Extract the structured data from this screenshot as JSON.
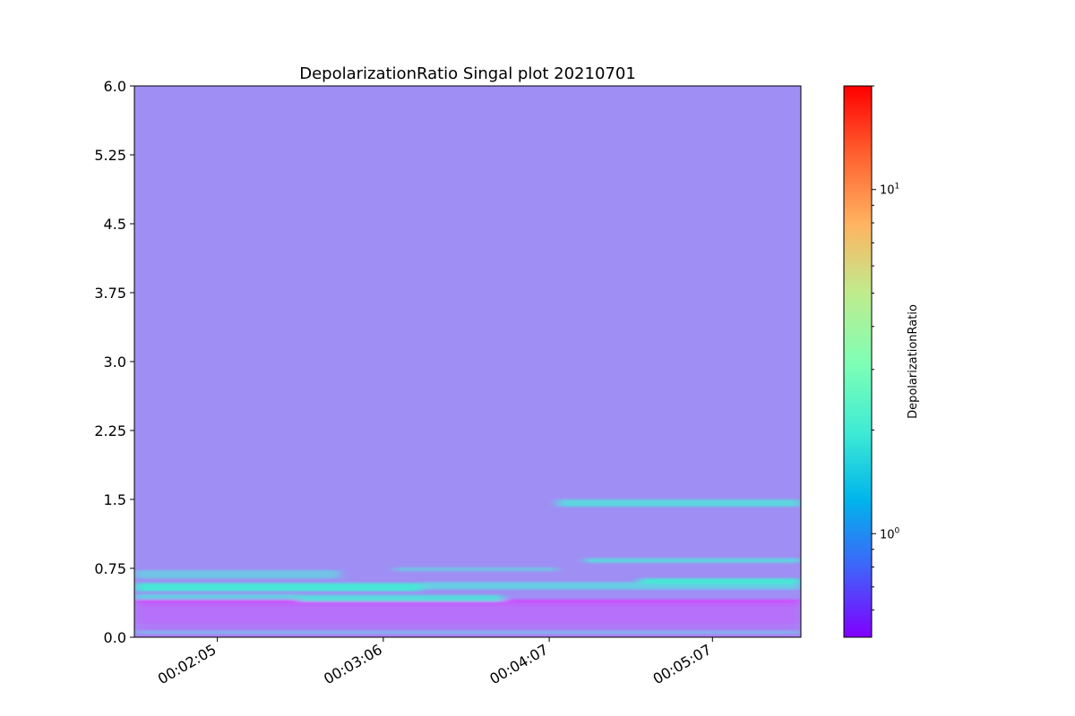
{
  "chart_data": {
    "type": "heatmap",
    "title": "DepolarizationRatio Singal plot 20210701",
    "xlabel": "",
    "ylabel": "",
    "x_tick_labels": [
      "00:02:05",
      "00:03:06",
      "00:04:07",
      "00:05:07"
    ],
    "x_tick_seconds": [
      125,
      186,
      247,
      307
    ],
    "xlim_seconds": [
      94.5,
      339.5
    ],
    "y_ticks": [
      "0.0",
      "0.75",
      "1.5",
      "2.25",
      "3.0",
      "3.75",
      "4.5",
      "5.25",
      "6.0"
    ],
    "ylim": [
      0,
      6
    ],
    "background_value": 1.0,
    "colorbar": {
      "label": "DepolarizationRatio",
      "scale": "log",
      "colormap": "rainbow",
      "range": [
        0.5,
        20
      ],
      "major_ticks": [
        {
          "value": 1,
          "base": "10",
          "exp": "0"
        },
        {
          "value": 10,
          "base": "10",
          "exp": "1"
        }
      ],
      "minor_ticks": [
        0.6,
        0.7,
        0.8,
        0.9,
        2,
        3,
        4,
        5,
        6,
        7,
        8,
        9,
        20
      ]
    },
    "bands": [
      {
        "x_start": 94.5,
        "x_end": 339.5,
        "y_low": 0.0,
        "y_high": 0.02,
        "value": 0.85
      },
      {
        "x_start": 94.5,
        "x_end": 339.5,
        "y_low": 0.04,
        "y_high": 0.07,
        "value": 1.3
      },
      {
        "x_start": 94.5,
        "x_end": 339.5,
        "y_low": 0.07,
        "y_high": 0.15,
        "value": 0.9
      },
      {
        "x_start": 94.5,
        "x_end": 339.5,
        "y_low": 0.15,
        "y_high": 0.34,
        "value": 0.85
      },
      {
        "x_start": 94.5,
        "x_end": 339.5,
        "y_low": 0.34,
        "y_high": 0.4,
        "value": 0.8
      },
      {
        "x_start": 94.5,
        "x_end": 339.5,
        "y_low": 0.38,
        "y_high": 0.41,
        "value": 0.7
      },
      {
        "x_start": 94.5,
        "x_end": 155,
        "y_low": 0.41,
        "y_high": 0.47,
        "value": 1.5
      },
      {
        "x_start": 155,
        "x_end": 230,
        "y_low": 0.39,
        "y_high": 0.46,
        "value": 1.7
      },
      {
        "x_start": 94.5,
        "x_end": 200,
        "y_low": 0.5,
        "y_high": 0.59,
        "value": 1.9
      },
      {
        "x_start": 200,
        "x_end": 339.5,
        "y_low": 0.52,
        "y_high": 0.6,
        "value": 1.5
      },
      {
        "x_start": 280,
        "x_end": 339.5,
        "y_low": 0.58,
        "y_high": 0.64,
        "value": 1.9
      },
      {
        "x_start": 94.5,
        "x_end": 170,
        "y_low": 0.64,
        "y_high": 0.73,
        "value": 1.4
      },
      {
        "x_start": 190,
        "x_end": 250,
        "y_low": 0.72,
        "y_high": 0.76,
        "value": 1.4
      },
      {
        "x_start": 260,
        "x_end": 339.5,
        "y_low": 0.81,
        "y_high": 0.86,
        "value": 1.6
      },
      {
        "x_start": 250,
        "x_end": 339.5,
        "y_low": 1.42,
        "y_high": 1.5,
        "value": 1.6
      }
    ]
  }
}
